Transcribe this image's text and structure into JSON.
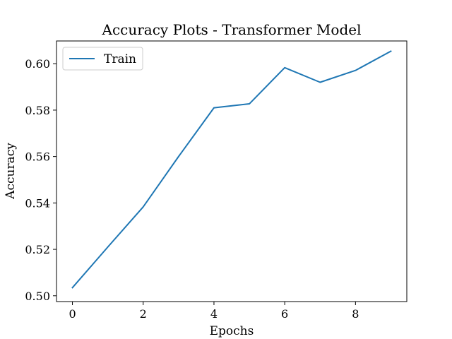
{
  "chart_data": {
    "type": "line",
    "title": "Accuracy Plots - Transformer Model",
    "xlabel": "Epochs",
    "ylabel": "Accuracy",
    "xlim": [
      -0.45,
      9.45
    ],
    "ylim": [
      0.4975,
      0.6098
    ],
    "xticks": [
      0,
      2,
      4,
      6,
      8
    ],
    "yticks": [
      0.5,
      0.52,
      0.54,
      0.56,
      0.58,
      0.6
    ],
    "xtick_labels": [
      "0",
      "2",
      "4",
      "6",
      "8"
    ],
    "ytick_labels": [
      "0.50",
      "0.52",
      "0.54",
      "0.56",
      "0.58",
      "0.60"
    ],
    "grid": false,
    "legend_position": "upper-left",
    "series": [
      {
        "name": "Train",
        "color": "#1f77b4",
        "x": [
          0,
          1,
          2,
          3,
          4,
          5,
          6,
          7,
          8,
          9
        ],
        "y": [
          0.5035,
          0.521,
          0.5383,
          0.56,
          0.581,
          0.5827,
          0.5983,
          0.592,
          0.5971,
          0.6054
        ]
      }
    ]
  }
}
